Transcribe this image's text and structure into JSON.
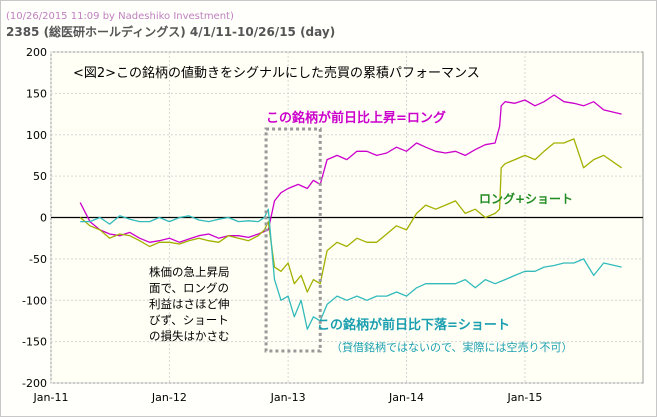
{
  "header": {
    "credit": "(10/26/2015 11:09 by Nadeshiko Investment)",
    "title": "2385 (総医研ホールディングス)  4/1/11-10/26/15 (day)"
  },
  "chart_data": {
    "type": "line",
    "title": "<図2>この銘柄の値動きをシグナルにした売買の累積パフォーマンス",
    "xlabel": "",
    "ylabel": "",
    "x_ticks": [
      "Jan-11",
      "Jan-12",
      "Jan-13",
      "Jan-14",
      "Jan-15"
    ],
    "x_range": [
      "2011-01-01",
      "2015-12-31"
    ],
    "ylim": [
      -200,
      200
    ],
    "y_ticks": [
      -200,
      -150,
      -100,
      -50,
      0,
      50,
      100,
      150,
      200
    ],
    "grid": true,
    "colors": {
      "long": "#cc00cc",
      "longshort": "#a3b000",
      "short": "#33bbbb",
      "box": "#999999",
      "title": "#000000",
      "legend_long": "#cc00cc",
      "legend_ls": "#228b22",
      "legend_short": "#1a9fb0"
    },
    "annotations": {
      "long": "この銘柄が前日比上昇=ロング",
      "longshort": "ロング+ショート",
      "short": "この銘柄が前日比下落=ショート",
      "short_note": "（貸借銘柄ではないので、実際には空売り不可）",
      "box_note": [
        "株価の急上昇局",
        "面で、ロングの",
        "利益はさほど伸",
        "びず、ショート",
        "の損失はかさむ"
      ],
      "box_range": [
        "2012-10-25",
        "2013-04-10"
      ]
    },
    "series": [
      {
        "key": "long",
        "x": [
          "2011-04-01",
          "2011-05-01",
          "2011-06-01",
          "2011-07-01",
          "2011-08-01",
          "2011-09-01",
          "2011-10-01",
          "2011-11-01",
          "2011-12-01",
          "2012-01-01",
          "2012-02-01",
          "2012-03-01",
          "2012-04-01",
          "2012-05-01",
          "2012-06-01",
          "2012-07-01",
          "2012-08-01",
          "2012-09-01",
          "2012-10-01",
          "2012-11-01",
          "2012-11-20",
          "2012-12-10",
          "2013-01-01",
          "2013-02-01",
          "2013-03-01",
          "2013-03-20",
          "2013-04-10",
          "2013-05-01",
          "2013-06-01",
          "2013-07-01",
          "2013-08-01",
          "2013-09-01",
          "2013-10-01",
          "2013-11-01",
          "2013-12-01",
          "2014-01-01",
          "2014-02-01",
          "2014-03-01",
          "2014-04-01",
          "2014-05-01",
          "2014-06-01",
          "2014-07-01",
          "2014-08-01",
          "2014-09-01",
          "2014-10-01",
          "2014-10-15",
          "2014-10-20",
          "2014-11-01",
          "2014-12-01",
          "2015-01-01",
          "2015-02-01",
          "2015-03-01",
          "2015-04-01",
          "2015-05-01",
          "2015-06-01",
          "2015-07-01",
          "2015-08-01",
          "2015-09-01",
          "2015-10-26"
        ],
        "y": [
          18,
          -5,
          -15,
          -20,
          -22,
          -18,
          -25,
          -30,
          -28,
          -25,
          -30,
          -26,
          -22,
          -20,
          -25,
          -22,
          -22,
          -24,
          -20,
          -15,
          20,
          30,
          35,
          40,
          35,
          45,
          40,
          70,
          75,
          70,
          80,
          80,
          75,
          78,
          85,
          80,
          90,
          85,
          80,
          78,
          80,
          75,
          82,
          88,
          90,
          110,
          135,
          140,
          138,
          142,
          135,
          140,
          148,
          140,
          138,
          135,
          140,
          130,
          125
        ]
      },
      {
        "key": "longshort",
        "x": [
          "2011-04-01",
          "2011-05-01",
          "2011-06-01",
          "2011-07-01",
          "2011-08-01",
          "2011-09-01",
          "2011-10-01",
          "2011-11-01",
          "2011-12-01",
          "2012-01-01",
          "2012-02-01",
          "2012-03-01",
          "2012-04-01",
          "2012-05-01",
          "2012-06-01",
          "2012-07-01",
          "2012-08-01",
          "2012-09-01",
          "2012-10-01",
          "2012-10-20",
          "2012-11-01",
          "2012-11-20",
          "2012-12-10",
          "2013-01-01",
          "2013-01-20",
          "2013-02-10",
          "2013-03-01",
          "2013-03-20",
          "2013-04-10",
          "2013-05-01",
          "2013-06-01",
          "2013-07-01",
          "2013-08-01",
          "2013-09-01",
          "2013-10-01",
          "2013-11-01",
          "2013-12-01",
          "2014-01-01",
          "2014-02-01",
          "2014-03-01",
          "2014-04-01",
          "2014-05-01",
          "2014-06-01",
          "2014-07-01",
          "2014-08-01",
          "2014-09-01",
          "2014-10-01",
          "2014-10-15",
          "2014-10-20",
          "2014-11-01",
          "2014-12-01",
          "2015-01-01",
          "2015-02-01",
          "2015-03-01",
          "2015-04-01",
          "2015-05-01",
          "2015-06-01",
          "2015-07-01",
          "2015-08-01",
          "2015-09-01",
          "2015-10-26"
        ],
        "y": [
          0,
          -10,
          -15,
          -25,
          -20,
          -22,
          -28,
          -35,
          -30,
          -30,
          -32,
          -28,
          -25,
          -28,
          -30,
          -22,
          -25,
          -28,
          -22,
          -15,
          -5,
          -60,
          -65,
          -55,
          -80,
          -70,
          -90,
          -75,
          -80,
          -40,
          -30,
          -35,
          -25,
          -30,
          -30,
          -20,
          -10,
          -15,
          5,
          15,
          10,
          15,
          20,
          5,
          10,
          0,
          5,
          10,
          60,
          65,
          70,
          75,
          70,
          80,
          90,
          90,
          95,
          60,
          70,
          75,
          60
        ]
      },
      {
        "key": "short",
        "x": [
          "2011-04-01",
          "2011-05-01",
          "2011-06-01",
          "2011-07-01",
          "2011-08-01",
          "2011-09-01",
          "2011-10-01",
          "2011-11-01",
          "2011-12-01",
          "2012-01-01",
          "2012-02-01",
          "2012-03-01",
          "2012-04-01",
          "2012-05-01",
          "2012-06-01",
          "2012-07-01",
          "2012-08-01",
          "2012-09-01",
          "2012-10-01",
          "2012-10-20",
          "2012-11-01",
          "2012-11-20",
          "2012-12-10",
          "2013-01-01",
          "2013-01-20",
          "2013-02-10",
          "2013-03-01",
          "2013-03-20",
          "2013-04-10",
          "2013-05-01",
          "2013-06-01",
          "2013-07-01",
          "2013-08-01",
          "2013-09-01",
          "2013-10-01",
          "2013-11-01",
          "2013-12-01",
          "2014-01-01",
          "2014-02-01",
          "2014-03-01",
          "2014-04-01",
          "2014-05-01",
          "2014-06-01",
          "2014-07-01",
          "2014-08-01",
          "2014-09-01",
          "2014-10-01",
          "2014-11-01",
          "2014-12-01",
          "2015-01-01",
          "2015-02-01",
          "2015-03-01",
          "2015-04-01",
          "2015-05-01",
          "2015-06-01",
          "2015-07-01",
          "2015-08-01",
          "2015-09-01",
          "2015-10-26"
        ],
        "y": [
          -5,
          -5,
          0,
          -8,
          2,
          -2,
          -5,
          -5,
          0,
          -5,
          0,
          2,
          -3,
          -5,
          -2,
          0,
          -5,
          -4,
          -5,
          0,
          10,
          -75,
          -100,
          -95,
          -120,
          -100,
          -135,
          -120,
          -125,
          -105,
          -95,
          -100,
          -95,
          -100,
          -95,
          -95,
          -90,
          -95,
          -85,
          -80,
          -80,
          -80,
          -80,
          -75,
          -85,
          -75,
          -80,
          -75,
          -70,
          -65,
          -65,
          -60,
          -58,
          -55,
          -55,
          -50,
          -70,
          -55,
          -60
        ]
      }
    ]
  }
}
